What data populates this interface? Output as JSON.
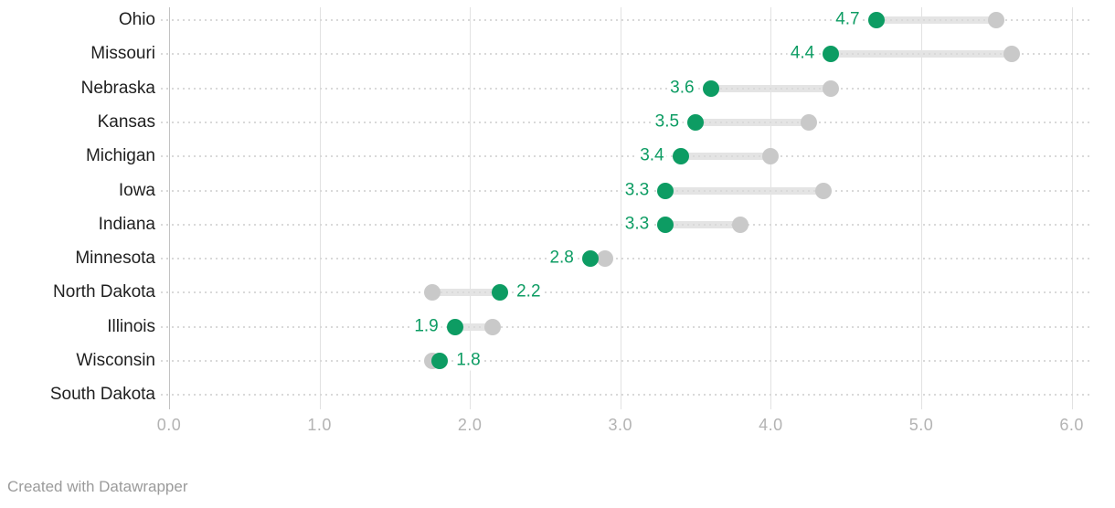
{
  "chart_data": {
    "type": "dumbbell",
    "orientation": "horizontal",
    "title": "",
    "xlabel": "",
    "ylabel": "",
    "x_axis": {
      "min": 0,
      "max": 6,
      "tick_values": [
        0,
        1,
        2,
        3,
        4,
        5,
        6
      ],
      "tick_labels": [
        "0.0",
        "1.0",
        "2.0",
        "3.0",
        "4.0",
        "5.0",
        "6.0"
      ],
      "grid": true
    },
    "series": [
      {
        "name": "current-value",
        "marker": "green dot with numeric label"
      },
      {
        "name": "comparison-value",
        "marker": "gray dot, unlabeled"
      }
    ],
    "rows": [
      {
        "state": "Ohio",
        "value": 4.7,
        "value_label": "4.7",
        "comparison": 5.5
      },
      {
        "state": "Missouri",
        "value": 4.4,
        "value_label": "4.4",
        "comparison": 5.6
      },
      {
        "state": "Nebraska",
        "value": 3.6,
        "value_label": "3.6",
        "comparison": 4.4
      },
      {
        "state": "Kansas",
        "value": 3.5,
        "value_label": "3.5",
        "comparison": 4.25
      },
      {
        "state": "Michigan",
        "value": 3.4,
        "value_label": "3.4",
        "comparison": 4.0
      },
      {
        "state": "Iowa",
        "value": 3.3,
        "value_label": "3.3",
        "comparison": 4.35
      },
      {
        "state": "Indiana",
        "value": 3.3,
        "value_label": "3.3",
        "comparison": 3.8
      },
      {
        "state": "Minnesota",
        "value": 2.8,
        "value_label": "2.8",
        "comparison": 2.9
      },
      {
        "state": "North Dakota",
        "value": 2.2,
        "value_label": "2.2",
        "comparison": 1.75
      },
      {
        "state": "Illinois",
        "value": 1.9,
        "value_label": "1.9",
        "comparison": 2.15
      },
      {
        "state": "Wisconsin",
        "value": 1.8,
        "value_label": "1.8",
        "comparison": 1.75
      },
      {
        "state": "South Dakota",
        "value": null,
        "value_label": "",
        "comparison": null
      }
    ],
    "legend_position": "none"
  },
  "colors": {
    "value_dot": "#0d9c63",
    "value_label": "#0d9c63",
    "comparison_dot": "#c9c9c9",
    "connector": "#e4e4e4",
    "gridline": "#e2e2e2",
    "zero_axis": "#c2c2c2",
    "row_guide": "#d9d9d9",
    "state_label": "#1f1f1f",
    "axis_label": "#b3b3b3",
    "credit": "#9b9b9b"
  },
  "footer": {
    "credit": "Created with Datawrapper"
  }
}
